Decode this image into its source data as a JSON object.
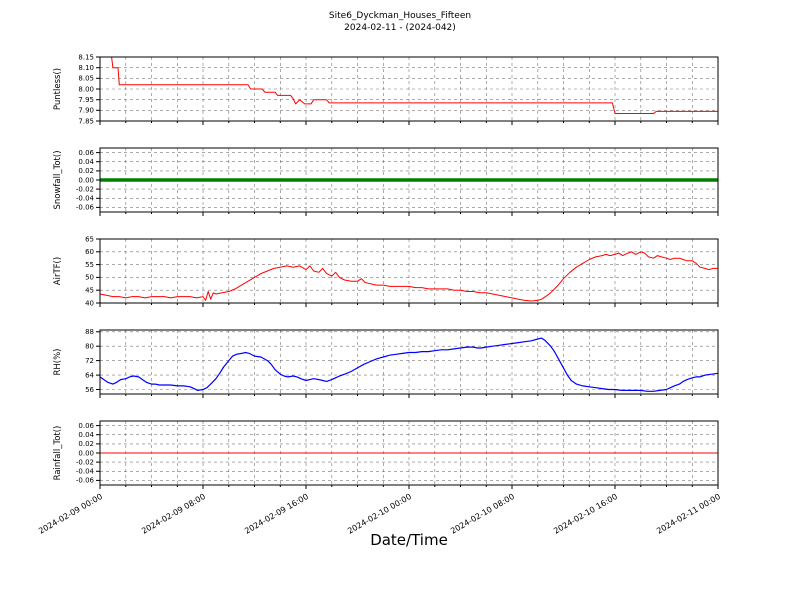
{
  "figure": {
    "title": "Site6_Dyckman_Houses_Fifteen",
    "subtitle": "2024-02-11 - (2024-042)",
    "xlabel": "Date/Time"
  },
  "chart_data": {
    "type": "line",
    "x_unit": "hours since 2024-02-09 00:00",
    "xlim": [
      0,
      48
    ],
    "grid": {
      "vertical_every_hours": 2,
      "style": "dashed",
      "on": true
    },
    "legend_position": "none",
    "xticks": [
      {
        "t": 0,
        "label": "2024-02-09 00:00"
      },
      {
        "t": 8,
        "label": "2024-02-09 08:00"
      },
      {
        "t": 16,
        "label": "2024-02-09 16:00"
      },
      {
        "t": 24,
        "label": "2024-02-10 00:00"
      },
      {
        "t": 32,
        "label": "2024-02-10 08:00"
      },
      {
        "t": 40,
        "label": "2024-02-10 16:00"
      },
      {
        "t": 48,
        "label": "2024-02-11 00:00"
      }
    ],
    "panels": [
      {
        "id": "puntless",
        "ylabel": "Puntless()",
        "color": "#ff0000",
        "linewidth": 1,
        "ylim": [
          7.85,
          8.15
        ],
        "yticks": [
          7.85,
          7.9,
          7.95,
          8.0,
          8.05,
          8.1,
          8.15
        ],
        "ytick_labels": [
          "7.85",
          "7.90",
          "7.95",
          "8.00",
          "8.05",
          "8.10",
          "8.15"
        ],
        "points": [
          [
            0,
            8.15
          ],
          [
            0.9,
            8.15
          ],
          [
            1.0,
            8.1
          ],
          [
            1.4,
            8.1
          ],
          [
            1.5,
            8.02
          ],
          [
            11.5,
            8.02
          ],
          [
            11.7,
            8.0
          ],
          [
            12.6,
            8.0
          ],
          [
            12.8,
            7.985
          ],
          [
            13.6,
            7.985
          ],
          [
            13.8,
            7.97
          ],
          [
            14.8,
            7.97
          ],
          [
            15.0,
            7.955
          ],
          [
            15.2,
            7.93
          ],
          [
            15.5,
            7.95
          ],
          [
            15.9,
            7.93
          ],
          [
            16.4,
            7.93
          ],
          [
            16.6,
            7.95
          ],
          [
            17.6,
            7.95
          ],
          [
            17.8,
            7.935
          ],
          [
            39.8,
            7.935
          ],
          [
            40.0,
            7.885
          ],
          [
            43.0,
            7.885
          ],
          [
            43.2,
            7.895
          ],
          [
            48,
            7.895
          ]
        ]
      },
      {
        "id": "snowfall_tot",
        "ylabel": "Snowfall_Tot()",
        "color": "#008000",
        "linewidth": 3.5,
        "ylim": [
          -0.07,
          0.07
        ],
        "yticks": [
          -0.06,
          -0.04,
          -0.02,
          0.0,
          0.02,
          0.04,
          0.06
        ],
        "ytick_labels": [
          "-0.06",
          "-0.04",
          "-0.02",
          "0.00",
          "0.02",
          "0.04",
          "0.06"
        ],
        "points": [
          [
            0,
            0
          ],
          [
            48,
            0
          ]
        ]
      },
      {
        "id": "airtf",
        "ylabel": "AirTF()",
        "color": "#ff0000",
        "linewidth": 1,
        "ylim": [
          40,
          65
        ],
        "yticks": [
          40,
          45,
          50,
          55,
          60,
          65
        ],
        "ytick_labels": [
          "40",
          "45",
          "50",
          "55",
          "60",
          "65"
        ],
        "points": [
          [
            0,
            43.5
          ],
          [
            0.5,
            43
          ],
          [
            1,
            42.5
          ],
          [
            1.5,
            42.5
          ],
          [
            2,
            42
          ],
          [
            2.5,
            42.5
          ],
          [
            3,
            42.5
          ],
          [
            3.5,
            42
          ],
          [
            4,
            42.5
          ],
          [
            4.5,
            42.5
          ],
          [
            5,
            42.5
          ],
          [
            5.5,
            42
          ],
          [
            6,
            42.5
          ],
          [
            6.5,
            42.5
          ],
          [
            7,
            42.5
          ],
          [
            7.5,
            42
          ],
          [
            8,
            42.5
          ],
          [
            8.2,
            41
          ],
          [
            8.4,
            44.5
          ],
          [
            8.6,
            41.5
          ],
          [
            8.8,
            44
          ],
          [
            9,
            43.5
          ],
          [
            9.5,
            44
          ],
          [
            10,
            44.5
          ],
          [
            10.5,
            45.5
          ],
          [
            11,
            47
          ],
          [
            11.5,
            48.5
          ],
          [
            12,
            50
          ],
          [
            12.5,
            51.5
          ],
          [
            13,
            52.5
          ],
          [
            13.5,
            53.5
          ],
          [
            14,
            54
          ],
          [
            14.5,
            54.5
          ],
          [
            15,
            54
          ],
          [
            15.5,
            54.5
          ],
          [
            16,
            53
          ],
          [
            16.3,
            54.5
          ],
          [
            16.6,
            52.5
          ],
          [
            17,
            52
          ],
          [
            17.3,
            53.5
          ],
          [
            17.6,
            51.5
          ],
          [
            18,
            50.5
          ],
          [
            18.3,
            52
          ],
          [
            18.6,
            50
          ],
          [
            19,
            49
          ],
          [
            19.5,
            48.5
          ],
          [
            20,
            48.5
          ],
          [
            20.3,
            49.5
          ],
          [
            20.6,
            48
          ],
          [
            21,
            47.5
          ],
          [
            21.5,
            47
          ],
          [
            22,
            47
          ],
          [
            22.5,
            46.5
          ],
          [
            23,
            46.5
          ],
          [
            23.5,
            46.5
          ],
          [
            24,
            46.5
          ],
          [
            24.5,
            46
          ],
          [
            25,
            46
          ],
          [
            25.5,
            45.5
          ],
          [
            26,
            45.5
          ],
          [
            26.5,
            45.5
          ],
          [
            27,
            45.5
          ],
          [
            27.5,
            45
          ],
          [
            28,
            45
          ],
          [
            28.5,
            44.5
          ],
          [
            29,
            44.5
          ],
          [
            29.5,
            44
          ],
          [
            30,
            44
          ],
          [
            30.5,
            43.5
          ],
          [
            31,
            43
          ],
          [
            31.5,
            42.5
          ],
          [
            32,
            42
          ],
          [
            32.5,
            41.5
          ],
          [
            33,
            41
          ],
          [
            33.5,
            40.8
          ],
          [
            34,
            41
          ],
          [
            34.3,
            41.5
          ],
          [
            34.6,
            42.5
          ],
          [
            35,
            44
          ],
          [
            35.5,
            46.5
          ],
          [
            36,
            49.5
          ],
          [
            36.5,
            52
          ],
          [
            37,
            54
          ],
          [
            37.5,
            55.5
          ],
          [
            38,
            57
          ],
          [
            38.5,
            58
          ],
          [
            39,
            58.5
          ],
          [
            39.3,
            59
          ],
          [
            39.6,
            58.5
          ],
          [
            40,
            59
          ],
          [
            40.3,
            59.5
          ],
          [
            40.6,
            58.5
          ],
          [
            41,
            59.5
          ],
          [
            41.3,
            60
          ],
          [
            41.6,
            59
          ],
          [
            42,
            60
          ],
          [
            42.3,
            59.5
          ],
          [
            42.6,
            58
          ],
          [
            43,
            57.5
          ],
          [
            43.3,
            58.5
          ],
          [
            43.6,
            58
          ],
          [
            44,
            57.5
          ],
          [
            44.3,
            57
          ],
          [
            44.6,
            57.5
          ],
          [
            45,
            57.5
          ],
          [
            45.3,
            57
          ],
          [
            45.6,
            56.5
          ],
          [
            46,
            56.5
          ],
          [
            46.3,
            55.5
          ],
          [
            46.6,
            54
          ],
          [
            47,
            53.5
          ],
          [
            47.3,
            53
          ],
          [
            47.6,
            53.5
          ],
          [
            48,
            53.5
          ]
        ]
      },
      {
        "id": "rh",
        "ylabel": "RH(%)",
        "color": "#0000ff",
        "linewidth": 1.2,
        "ylim": [
          53.5,
          89
        ],
        "yticks": [
          56,
          64,
          72,
          80,
          88
        ],
        "ytick_labels": [
          "56",
          "64",
          "72",
          "80",
          "88"
        ],
        "points": [
          [
            0,
            63
          ],
          [
            0.3,
            61.5
          ],
          [
            0.6,
            60
          ],
          [
            1,
            59
          ],
          [
            1.3,
            60
          ],
          [
            1.6,
            61.5
          ],
          [
            2,
            62
          ],
          [
            2.3,
            63
          ],
          [
            2.6,
            63.5
          ],
          [
            3,
            63
          ],
          [
            3.3,
            61.5
          ],
          [
            3.6,
            60
          ],
          [
            4,
            59
          ],
          [
            4.3,
            59
          ],
          [
            4.6,
            58.5
          ],
          [
            5,
            58.5
          ],
          [
            5.5,
            58.5
          ],
          [
            6,
            58
          ],
          [
            6.5,
            58
          ],
          [
            7,
            57.5
          ],
          [
            7.3,
            56.5
          ],
          [
            7.6,
            55.5
          ],
          [
            8,
            56
          ],
          [
            8.3,
            57
          ],
          [
            8.6,
            59
          ],
          [
            9,
            62
          ],
          [
            9.3,
            65
          ],
          [
            9.6,
            68.5
          ],
          [
            10,
            72
          ],
          [
            10.3,
            74.5
          ],
          [
            10.6,
            75.5
          ],
          [
            11,
            76
          ],
          [
            11.3,
            76.5
          ],
          [
            11.6,
            76
          ],
          [
            12,
            74.5
          ],
          [
            12.5,
            74
          ],
          [
            13,
            72
          ],
          [
            13.3,
            70
          ],
          [
            13.6,
            67
          ],
          [
            14,
            64.5
          ],
          [
            14.3,
            63.5
          ],
          [
            14.6,
            63
          ],
          [
            15,
            63.5
          ],
          [
            15.3,
            63
          ],
          [
            15.6,
            62
          ],
          [
            16,
            61
          ],
          [
            16.3,
            61.5
          ],
          [
            16.6,
            62
          ],
          [
            17,
            61.5
          ],
          [
            17.3,
            61
          ],
          [
            17.6,
            60.5
          ],
          [
            18,
            61.5
          ],
          [
            18.3,
            62.5
          ],
          [
            18.6,
            63.5
          ],
          [
            19,
            64.5
          ],
          [
            19.5,
            66
          ],
          [
            20,
            68
          ],
          [
            20.5,
            70
          ],
          [
            21,
            71.5
          ],
          [
            21.5,
            73
          ],
          [
            22,
            74
          ],
          [
            22.5,
            75
          ],
          [
            23,
            75.5
          ],
          [
            23.5,
            76
          ],
          [
            24,
            76.5
          ],
          [
            24.5,
            76.5
          ],
          [
            25,
            77
          ],
          [
            25.5,
            77
          ],
          [
            26,
            77.5
          ],
          [
            26.5,
            78
          ],
          [
            27,
            78
          ],
          [
            27.5,
            78.5
          ],
          [
            28,
            79
          ],
          [
            28.5,
            79.5
          ],
          [
            29,
            79.5
          ],
          [
            29.3,
            79
          ],
          [
            29.6,
            79
          ],
          [
            30,
            79.5
          ],
          [
            30.5,
            80
          ],
          [
            31,
            80.5
          ],
          [
            31.5,
            81
          ],
          [
            32,
            81.5
          ],
          [
            32.5,
            82
          ],
          [
            33,
            82.5
          ],
          [
            33.5,
            83
          ],
          [
            34,
            84
          ],
          [
            34.3,
            84.5
          ],
          [
            34.6,
            83
          ],
          [
            35,
            80
          ],
          [
            35.3,
            77
          ],
          [
            35.6,
            73
          ],
          [
            36,
            68
          ],
          [
            36.3,
            64
          ],
          [
            36.6,
            61
          ],
          [
            37,
            59
          ],
          [
            37.5,
            58
          ],
          [
            38,
            57.5
          ],
          [
            38.5,
            57
          ],
          [
            39,
            56.5
          ],
          [
            39.5,
            56
          ],
          [
            40,
            56
          ],
          [
            40.5,
            55.5
          ],
          [
            41,
            55.5
          ],
          [
            41.5,
            55.5
          ],
          [
            42,
            55.5
          ],
          [
            42.5,
            55
          ],
          [
            43,
            55
          ],
          [
            43.5,
            55.5
          ],
          [
            44,
            56
          ],
          [
            44.3,
            57
          ],
          [
            44.6,
            58
          ],
          [
            45,
            59
          ],
          [
            45.3,
            60.5
          ],
          [
            45.6,
            61.5
          ],
          [
            46,
            62.5
          ],
          [
            46.3,
            63
          ],
          [
            46.6,
            63
          ],
          [
            47,
            64
          ],
          [
            47.5,
            64.5
          ],
          [
            48,
            65
          ]
        ]
      },
      {
        "id": "rainfall_tot",
        "ylabel": "Rainfall_Tot()",
        "color": "#ff0000",
        "linewidth": 1,
        "ylim": [
          -0.07,
          0.07
        ],
        "yticks": [
          -0.06,
          -0.04,
          -0.02,
          0.0,
          0.02,
          0.04,
          0.06
        ],
        "ytick_labels": [
          "-0.06",
          "-0.04",
          "-0.02",
          "0.00",
          "0.02",
          "0.04",
          "0.06"
        ],
        "points": [
          [
            0,
            0
          ],
          [
            48,
            0
          ]
        ]
      }
    ]
  }
}
